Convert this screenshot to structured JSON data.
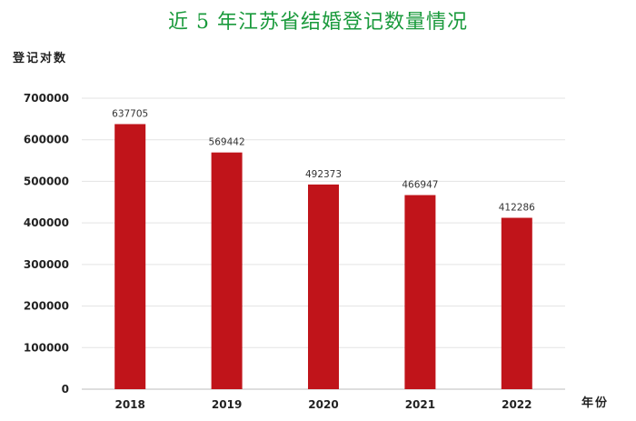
{
  "chart_data": {
    "type": "bar",
    "title": "近 5 年江苏省结婚登记数量情况",
    "ylabel": "登记对数",
    "xlabel": "年份",
    "categories": [
      "2018",
      "2019",
      "2020",
      "2021",
      "2022"
    ],
    "values": [
      637705,
      569442,
      492373,
      466947,
      412286
    ],
    "data_labels": [
      "637705",
      "569442",
      "492373",
      "466947",
      "412286"
    ],
    "ylim": [
      0,
      700000
    ],
    "yticks": [
      "0",
      "100000",
      "200000",
      "300000",
      "400000",
      "500000",
      "600000",
      "700000"
    ],
    "grid": true,
    "bar_color": "#c0141a",
    "title_color": "#1a9a3c"
  }
}
